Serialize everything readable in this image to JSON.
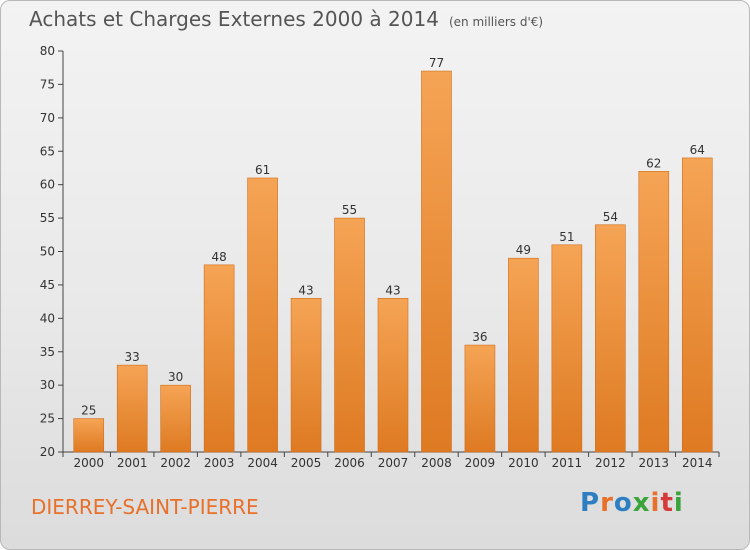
{
  "header": {
    "title": "Achats et Charges Externes 2000 à 2014",
    "subtitle": "(en milliers d'€)"
  },
  "footer": {
    "town": "DIERREY-SAINT-PIERRE",
    "logo": "Proxiti",
    "logo_colors": [
      "#2d7fc2",
      "#e8702a",
      "#2d7fc2",
      "#3aa33a",
      "#e8702a",
      "#d63a3a",
      "#3aa33a"
    ]
  },
  "chart_data": {
    "type": "bar",
    "categories": [
      "2000",
      "2001",
      "2002",
      "2003",
      "2004",
      "2005",
      "2006",
      "2007",
      "2008",
      "2009",
      "2010",
      "2011",
      "2012",
      "2013",
      "2014"
    ],
    "values": [
      25,
      33,
      30,
      48,
      61,
      43,
      55,
      43,
      77,
      36,
      49,
      51,
      54,
      62,
      64
    ],
    "ylim": [
      20,
      80
    ],
    "yticks": [
      20,
      25,
      30,
      35,
      40,
      45,
      50,
      55,
      60,
      65,
      70,
      75,
      80
    ],
    "bar_color_top": "#f5a455",
    "bar_color_bottom": "#de7a22",
    "grid": false
  }
}
